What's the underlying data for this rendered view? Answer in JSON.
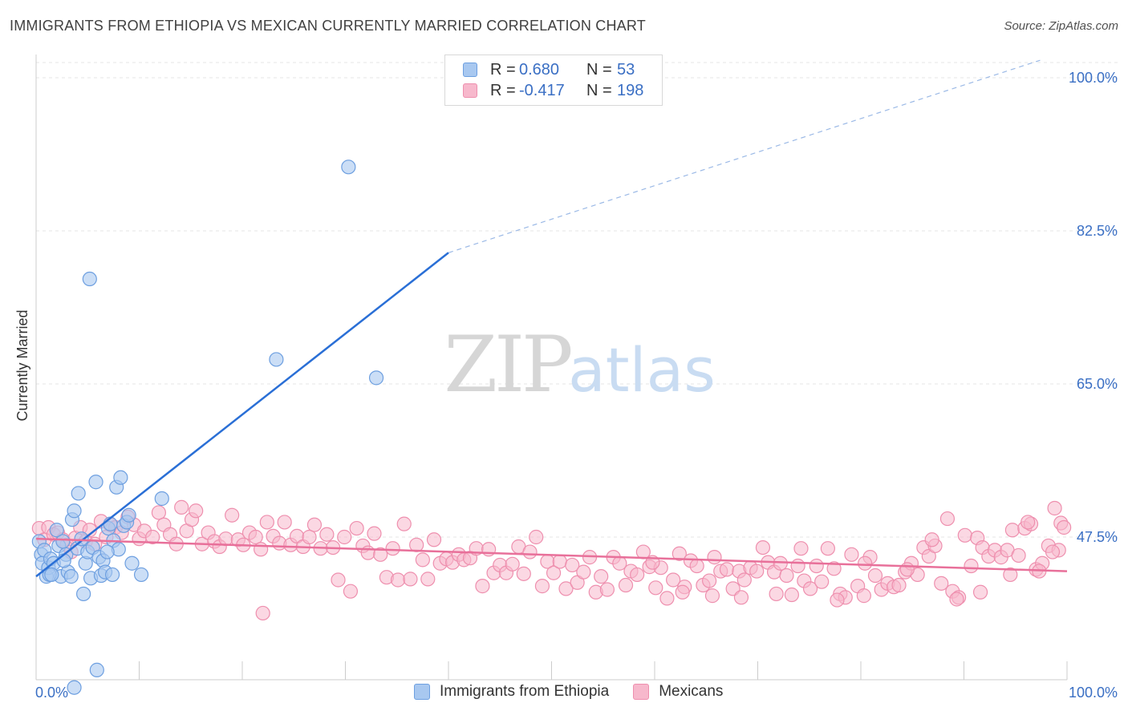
{
  "header": {
    "title": "IMMIGRANTS FROM ETHIOPIA VS MEXICAN CURRENTLY MARRIED CORRELATION CHART",
    "source": "Source: ZipAtlas.com"
  },
  "watermark": {
    "zip": "ZIP",
    "atlas": "atlas"
  },
  "legend": {
    "rows": [
      {
        "r_label": "R =",
        "r_value": "0.680",
        "n_label": "N =",
        "n_value": "53",
        "color": "#a8c8f0"
      },
      {
        "r_label": "R =",
        "r_value": "-0.417",
        "n_label": "N =",
        "n_value": "198",
        "color": "#f7b8cc"
      }
    ]
  },
  "bottom_legend": {
    "items": [
      {
        "label": "Immigrants from Ethiopia",
        "color": "#a8c8f0"
      },
      {
        "label": "Mexicans",
        "color": "#f7b8cc"
      }
    ]
  },
  "chart_data": {
    "type": "scatter",
    "ylabel": "Currently Married",
    "xlim": [
      0,
      100
    ],
    "ylim": [
      30,
      102
    ],
    "x_tick_labels": [
      "0.0%",
      "100.0%"
    ],
    "y_ticks": [
      {
        "value": 100.0,
        "label": "100.0%"
      },
      {
        "value": 82.5,
        "label": "82.5%"
      },
      {
        "value": 65.0,
        "label": "65.0%"
      },
      {
        "value": 47.5,
        "label": "47.5%"
      }
    ],
    "colors": {
      "ethiopia_fill": "#a8c8f0",
      "ethiopia_stroke": "#6d9fe0",
      "ethiopia_line": "#2a6fd6",
      "mexican_fill": "#f7b8cc",
      "mexican_stroke": "#ee8fae",
      "mexican_line": "#e8709a",
      "tick_label": "#3a6fc4",
      "grid": "#e4e4e4"
    },
    "series": [
      {
        "name": "Immigrants from Ethiopia",
        "trend": {
          "x": [
            0.0,
            40.0
          ],
          "y": [
            43.0,
            80.0
          ],
          "dashed_to": [
            100.0,
            103.0
          ]
        },
        "points": [
          [
            0.3,
            47
          ],
          [
            0.5,
            45.5
          ],
          [
            0.6,
            44.5
          ],
          [
            0.8,
            46
          ],
          [
            1.0,
            43
          ],
          [
            1.2,
            44
          ],
          [
            1.4,
            45
          ],
          [
            1.7,
            44.5
          ],
          [
            2.0,
            48.3
          ],
          [
            2.2,
            46.5
          ],
          [
            2.4,
            43
          ],
          [
            2.6,
            47
          ],
          [
            2.9,
            45.5
          ],
          [
            3.1,
            43.5
          ],
          [
            3.4,
            43
          ],
          [
            3.5,
            49.5
          ],
          [
            3.7,
            50.5
          ],
          [
            4.0,
            46.2
          ],
          [
            4.1,
            52.5
          ],
          [
            4.4,
            47.3
          ],
          [
            4.6,
            41
          ],
          [
            4.8,
            44.5
          ],
          [
            5.0,
            45.8
          ],
          [
            5.3,
            42.8
          ],
          [
            5.5,
            46.3
          ],
          [
            5.8,
            53.8
          ],
          [
            6.1,
            45.2
          ],
          [
            6.3,
            43.1
          ],
          [
            6.5,
            44.8
          ],
          [
            6.7,
            43.5
          ],
          [
            7.0,
            48.5
          ],
          [
            7.2,
            49
          ],
          [
            7.4,
            43.2
          ],
          [
            7.5,
            47.1
          ],
          [
            7.8,
            53.2
          ],
          [
            8.0,
            46.1
          ],
          [
            8.2,
            54.3
          ],
          [
            8.5,
            48.8
          ],
          [
            8.8,
            49.2
          ],
          [
            9.0,
            50.0
          ],
          [
            9.3,
            44.5
          ],
          [
            10.2,
            43.2
          ],
          [
            12.2,
            51.9
          ],
          [
            1.3,
            43.2
          ],
          [
            2.7,
            44.8
          ],
          [
            5.2,
            77.0
          ],
          [
            23.3,
            67.8
          ],
          [
            30.3,
            89.8
          ],
          [
            33.0,
            65.7
          ],
          [
            5.9,
            32.3
          ],
          [
            3.7,
            30.3
          ],
          [
            1.5,
            43.2
          ],
          [
            6.9,
            45.8
          ]
        ]
      },
      {
        "name": "Mexicans",
        "trend": {
          "x": [
            0.0,
            100.0
          ],
          "y": [
            47.3,
            43.6
          ]
        },
        "points": [
          [
            0.3,
            48.5
          ],
          [
            0.8,
            47.2
          ],
          [
            1.2,
            48.6
          ],
          [
            1.7,
            47.8
          ],
          [
            2.1,
            48.0
          ],
          [
            2.6,
            47.2
          ],
          [
            3.0,
            46.6
          ],
          [
            3.4,
            45.8
          ],
          [
            3.8,
            47.4
          ],
          [
            4.3,
            48.6
          ],
          [
            4.8,
            47.0
          ],
          [
            5.2,
            48.3
          ],
          [
            5.7,
            46.7
          ],
          [
            6.3,
            49.3
          ],
          [
            6.8,
            47.5
          ],
          [
            7.2,
            48.9
          ],
          [
            7.7,
            48.6
          ],
          [
            8.3,
            48.0
          ],
          [
            8.9,
            49.8
          ],
          [
            9.5,
            48.9
          ],
          [
            10.0,
            47.3
          ],
          [
            10.5,
            48.2
          ],
          [
            11.3,
            47.5
          ],
          [
            11.9,
            50.3
          ],
          [
            12.4,
            48.9
          ],
          [
            13.0,
            47.8
          ],
          [
            13.6,
            46.7
          ],
          [
            14.1,
            50.9
          ],
          [
            14.6,
            48.2
          ],
          [
            15.1,
            49.5
          ],
          [
            15.5,
            50.5
          ],
          [
            16.1,
            46.7
          ],
          [
            16.7,
            48.0
          ],
          [
            17.3,
            47.0
          ],
          [
            17.8,
            46.4
          ],
          [
            18.4,
            47.3
          ],
          [
            19.0,
            50.0
          ],
          [
            19.6,
            47.2
          ],
          [
            20.1,
            46.6
          ],
          [
            20.7,
            48.0
          ],
          [
            21.3,
            47.5
          ],
          [
            21.8,
            46.1
          ],
          [
            22.4,
            49.2
          ],
          [
            23.0,
            47.6
          ],
          [
            23.6,
            46.8
          ],
          [
            24.1,
            49.2
          ],
          [
            24.7,
            46.6
          ],
          [
            25.3,
            47.6
          ],
          [
            25.9,
            46.4
          ],
          [
            26.5,
            47.5
          ],
          [
            27.0,
            48.9
          ],
          [
            27.6,
            46.2
          ],
          [
            28.2,
            47.8
          ],
          [
            28.8,
            46.3
          ],
          [
            29.3,
            42.6
          ],
          [
            29.9,
            47.5
          ],
          [
            30.5,
            41.3
          ],
          [
            31.1,
            48.5
          ],
          [
            31.7,
            46.5
          ],
          [
            32.2,
            45.7
          ],
          [
            32.8,
            47.9
          ],
          [
            33.4,
            45.5
          ],
          [
            34.0,
            42.9
          ],
          [
            34.6,
            46.2
          ],
          [
            35.1,
            42.6
          ],
          [
            35.7,
            49.0
          ],
          [
            36.3,
            42.7
          ],
          [
            36.9,
            46.6
          ],
          [
            37.5,
            44.9
          ],
          [
            38.0,
            42.7
          ],
          [
            38.6,
            47.2
          ],
          [
            39.2,
            44.5
          ],
          [
            39.8,
            45.0
          ],
          [
            40.4,
            44.6
          ],
          [
            41.0,
            45.5
          ],
          [
            41.5,
            44.9
          ],
          [
            42.1,
            45.1
          ],
          [
            42.7,
            46.2
          ],
          [
            43.3,
            41.9
          ],
          [
            43.9,
            46.1
          ],
          [
            44.4,
            43.4
          ],
          [
            45.0,
            44.3
          ],
          [
            45.6,
            43.4
          ],
          [
            46.2,
            44.4
          ],
          [
            46.8,
            46.4
          ],
          [
            47.3,
            43.3
          ],
          [
            47.9,
            45.8
          ],
          [
            48.5,
            47.5
          ],
          [
            49.1,
            41.9
          ],
          [
            49.6,
            44.7
          ],
          [
            50.2,
            43.4
          ],
          [
            50.8,
            44.7
          ],
          [
            51.4,
            41.6
          ],
          [
            52.0,
            44.3
          ],
          [
            52.5,
            42.3
          ],
          [
            53.1,
            43.5
          ],
          [
            53.7,
            45.2
          ],
          [
            54.3,
            41.2
          ],
          [
            54.8,
            43.0
          ],
          [
            55.4,
            41.5
          ],
          [
            56.0,
            45.2
          ],
          [
            56.6,
            44.5
          ],
          [
            57.2,
            42.0
          ],
          [
            57.7,
            43.6
          ],
          [
            58.3,
            43.2
          ],
          [
            58.9,
            45.8
          ],
          [
            59.5,
            44.1
          ],
          [
            60.1,
            41.7
          ],
          [
            60.6,
            44.0
          ],
          [
            61.2,
            40.5
          ],
          [
            61.8,
            42.6
          ],
          [
            62.4,
            45.6
          ],
          [
            62.9,
            41.8
          ],
          [
            63.5,
            44.8
          ],
          [
            64.1,
            44.2
          ],
          [
            64.7,
            42.0
          ],
          [
            65.3,
            42.5
          ],
          [
            65.8,
            45.2
          ],
          [
            66.4,
            43.6
          ],
          [
            67.0,
            43.8
          ],
          [
            67.6,
            41.6
          ],
          [
            68.2,
            43.6
          ],
          [
            68.7,
            42.6
          ],
          [
            69.3,
            44.0
          ],
          [
            69.9,
            43.6
          ],
          [
            70.5,
            46.3
          ],
          [
            71.0,
            44.6
          ],
          [
            71.6,
            43.5
          ],
          [
            72.2,
            44.5
          ],
          [
            72.8,
            43.1
          ],
          [
            73.3,
            40.9
          ],
          [
            73.9,
            44.2
          ],
          [
            74.5,
            42.5
          ],
          [
            75.1,
            41.6
          ],
          [
            75.7,
            44.2
          ],
          [
            76.2,
            42.4
          ],
          [
            76.8,
            46.2
          ],
          [
            77.4,
            43.9
          ],
          [
            78.0,
            41.0
          ],
          [
            78.5,
            40.6
          ],
          [
            79.1,
            45.5
          ],
          [
            79.7,
            41.9
          ],
          [
            80.3,
            40.8
          ],
          [
            80.9,
            45.2
          ],
          [
            81.4,
            43.1
          ],
          [
            82.0,
            41.5
          ],
          [
            82.6,
            42.2
          ],
          [
            83.2,
            41.8
          ],
          [
            83.7,
            42.0
          ],
          [
            84.3,
            43.5
          ],
          [
            84.9,
            44.5
          ],
          [
            85.5,
            43.2
          ],
          [
            86.1,
            46.3
          ],
          [
            86.6,
            45.3
          ],
          [
            87.2,
            46.5
          ],
          [
            87.8,
            42.2
          ],
          [
            88.4,
            49.6
          ],
          [
            88.9,
            41.3
          ],
          [
            89.5,
            40.6
          ],
          [
            90.1,
            47.7
          ],
          [
            90.7,
            44.2
          ],
          [
            91.3,
            47.4
          ],
          [
            91.8,
            46.3
          ],
          [
            92.4,
            45.3
          ],
          [
            93.0,
            46.0
          ],
          [
            93.6,
            45.2
          ],
          [
            94.2,
            46.0
          ],
          [
            94.7,
            48.3
          ],
          [
            95.3,
            45.4
          ],
          [
            95.9,
            48.5
          ],
          [
            96.5,
            49.0
          ],
          [
            97.0,
            43.8
          ],
          [
            97.6,
            44.5
          ],
          [
            98.2,
            46.5
          ],
          [
            98.8,
            50.8
          ],
          [
            99.4,
            49.1
          ],
          [
            99.7,
            48.6
          ],
          [
            99.2,
            46.0
          ],
          [
            98.6,
            45.8
          ],
          [
            97.3,
            43.6
          ],
          [
            96.2,
            49.2
          ],
          [
            94.5,
            43.2
          ],
          [
            91.6,
            41.2
          ],
          [
            89.3,
            40.4
          ],
          [
            86.9,
            47.2
          ],
          [
            84.5,
            43.8
          ],
          [
            80.4,
            44.5
          ],
          [
            77.7,
            40.3
          ],
          [
            74.2,
            46.2
          ],
          [
            71.8,
            41.0
          ],
          [
            68.4,
            40.6
          ],
          [
            65.6,
            40.8
          ],
          [
            62.7,
            41.2
          ],
          [
            59.8,
            44.6
          ],
          [
            22.0,
            38.8
          ]
        ]
      }
    ]
  }
}
